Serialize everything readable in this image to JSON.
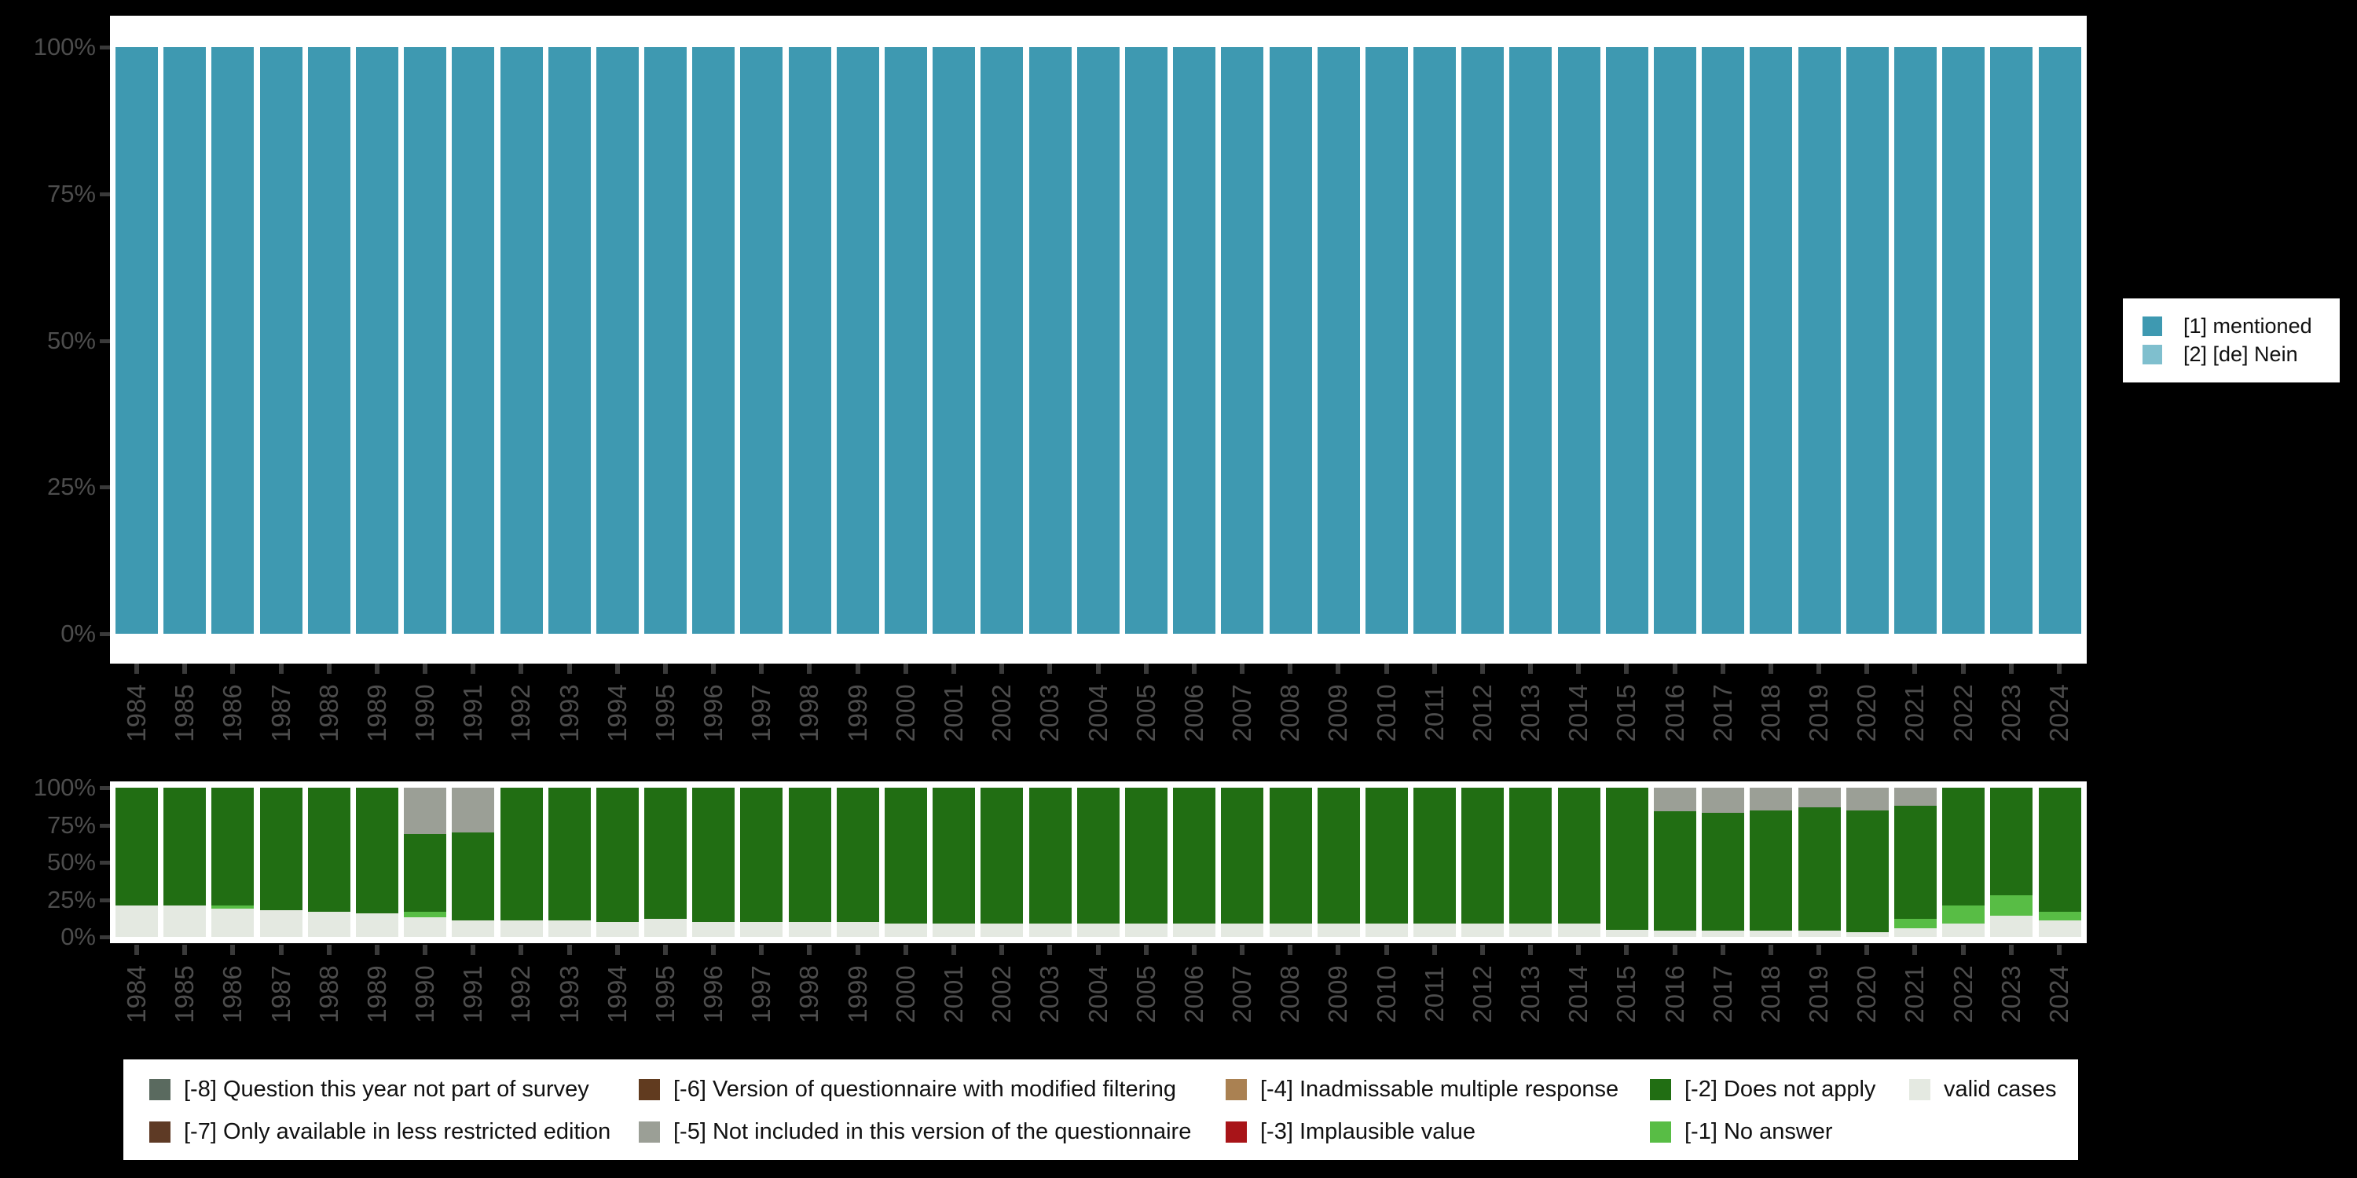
{
  "colors": {
    "background": "#000000",
    "plot_background": "#ffffff",
    "axis_text": "#4d4d4d",
    "tick_mark": "#3a3a3a",
    "legend_text": "#111111"
  },
  "chart_data": [
    {
      "type": "bar",
      "stacked": true,
      "title": "",
      "xlabel": "",
      "ylabel": "",
      "ylim": [
        0,
        100
      ],
      "grid": false,
      "legend_position": "right",
      "y_axis_ticks": [
        "100%",
        "75%",
        "50%",
        "25%",
        "0%"
      ],
      "categories": [
        "1984",
        "1985",
        "1986",
        "1987",
        "1988",
        "1989",
        "1990",
        "1991",
        "1992",
        "1993",
        "1994",
        "1995",
        "1996",
        "1997",
        "1998",
        "1999",
        "2000",
        "2001",
        "2002",
        "2003",
        "2004",
        "2005",
        "2006",
        "2007",
        "2008",
        "2009",
        "2010",
        "2011",
        "2012",
        "2013",
        "2014",
        "2015",
        "2016",
        "2017",
        "2018",
        "2019",
        "2020",
        "2021",
        "2022",
        "2023",
        "2024"
      ],
      "series": [
        {
          "name": "[1] mentioned",
          "key": "mentioned",
          "color": "#3e99b1",
          "values": [
            100,
            100,
            100,
            100,
            100,
            100,
            100,
            100,
            100,
            100,
            100,
            100,
            100,
            100,
            100,
            100,
            100,
            100,
            100,
            100,
            100,
            100,
            100,
            100,
            100,
            100,
            100,
            100,
            100,
            100,
            100,
            100,
            100,
            100,
            100,
            100,
            100,
            100,
            100,
            100,
            100
          ]
        },
        {
          "name": "[2] [de] Nein",
          "key": "nein",
          "color": "#7fbfce",
          "values": [
            0,
            0,
            0,
            0,
            0,
            0,
            0,
            0,
            0,
            0,
            0,
            0,
            0,
            0,
            0,
            0,
            0,
            0,
            0,
            0,
            0,
            0,
            0,
            0,
            0,
            0,
            0,
            0,
            0,
            0,
            0,
            0,
            0,
            0,
            0,
            0,
            0,
            0,
            0,
            0,
            0
          ]
        }
      ]
    },
    {
      "type": "bar",
      "stacked": true,
      "title": "",
      "xlabel": "",
      "ylabel": "",
      "ylim": [
        0,
        100
      ],
      "grid": false,
      "stack_order": "bottom-to-top",
      "y_axis_ticks": [
        "100%",
        "75%",
        "50%",
        "25%",
        "0%"
      ],
      "categories": [
        "1984",
        "1985",
        "1986",
        "1987",
        "1988",
        "1989",
        "1990",
        "1991",
        "1992",
        "1993",
        "1994",
        "1995",
        "1996",
        "1997",
        "1998",
        "1999",
        "2000",
        "2001",
        "2002",
        "2003",
        "2004",
        "2005",
        "2006",
        "2007",
        "2008",
        "2009",
        "2010",
        "2011",
        "2012",
        "2013",
        "2014",
        "2015",
        "2016",
        "2017",
        "2018",
        "2019",
        "2020",
        "2021",
        "2022",
        "2023",
        "2024"
      ],
      "series": [
        {
          "name": "valid cases",
          "key": "valid-cases",
          "color": "#e4e9e1",
          "values": [
            21,
            21,
            19,
            18,
            17,
            16,
            13,
            11,
            11,
            11,
            10,
            12,
            10,
            10,
            10,
            10,
            9,
            9,
            9,
            9,
            9,
            9,
            9,
            9,
            9,
            9,
            9,
            9,
            9,
            9,
            9,
            5,
            4,
            4,
            4,
            4,
            3,
            6,
            9,
            14,
            11
          ]
        },
        {
          "name": "[-1] No answer",
          "key": "no-answer",
          "color": "#58bd45",
          "values": [
            0,
            0,
            2,
            0,
            0,
            0,
            4,
            0,
            0,
            0,
            0,
            0,
            0,
            0,
            0,
            0,
            0,
            0,
            0,
            0,
            0,
            0,
            0,
            0,
            0,
            0,
            0,
            0,
            0,
            0,
            0,
            0,
            0,
            0,
            0,
            0,
            0,
            6,
            12,
            14,
            6
          ]
        },
        {
          "name": "[-2] Does not apply",
          "key": "does-not-apply",
          "color": "#216e13",
          "values": [
            79,
            79,
            79,
            82,
            83,
            84,
            52,
            59,
            89,
            89,
            90,
            88,
            90,
            90,
            90,
            90,
            91,
            91,
            91,
            91,
            91,
            91,
            91,
            91,
            91,
            91,
            91,
            91,
            91,
            91,
            91,
            95,
            80,
            79,
            81,
            83,
            82,
            76,
            79,
            72,
            83
          ]
        },
        {
          "name": "[-5] Not included in this version of the questionnaire",
          "key": "not-included",
          "color": "#9b9f96",
          "values": [
            0,
            0,
            0,
            0,
            0,
            0,
            31,
            30,
            0,
            0,
            0,
            0,
            0,
            0,
            0,
            0,
            0,
            0,
            0,
            0,
            0,
            0,
            0,
            0,
            0,
            0,
            0,
            0,
            0,
            0,
            0,
            0,
            16,
            17,
            15,
            13,
            15,
            12,
            0,
            0,
            0
          ]
        }
      ]
    }
  ],
  "legend_right": {
    "items": [
      {
        "label": "[1] mentioned",
        "color": "#3e99b1"
      },
      {
        "label": "[2] [de] Nein",
        "color": "#7fbfce"
      }
    ]
  },
  "legend_bottom": {
    "items": [
      {
        "label": "[-8] Question this year not part of survey",
        "color": "#5a6a5f"
      },
      {
        "label": "[-7] Only available in less restricted edition",
        "color": "#5e3a25"
      },
      {
        "label": "[-6] Version of questionnaire with modified filtering",
        "color": "#613b1f"
      },
      {
        "label": "[-5] Not included in this version of the questionnaire",
        "color": "#9b9f96"
      },
      {
        "label": "[-4] Inadmissable multiple response",
        "color": "#aa8152"
      },
      {
        "label": "[-3] Implausible value",
        "color": "#a81418"
      },
      {
        "label": "[-2] Does not apply",
        "color": "#216e13"
      },
      {
        "label": "[-1] No answer",
        "color": "#58bd45"
      },
      {
        "label": "valid cases",
        "color": "#e4e9e1"
      }
    ]
  }
}
